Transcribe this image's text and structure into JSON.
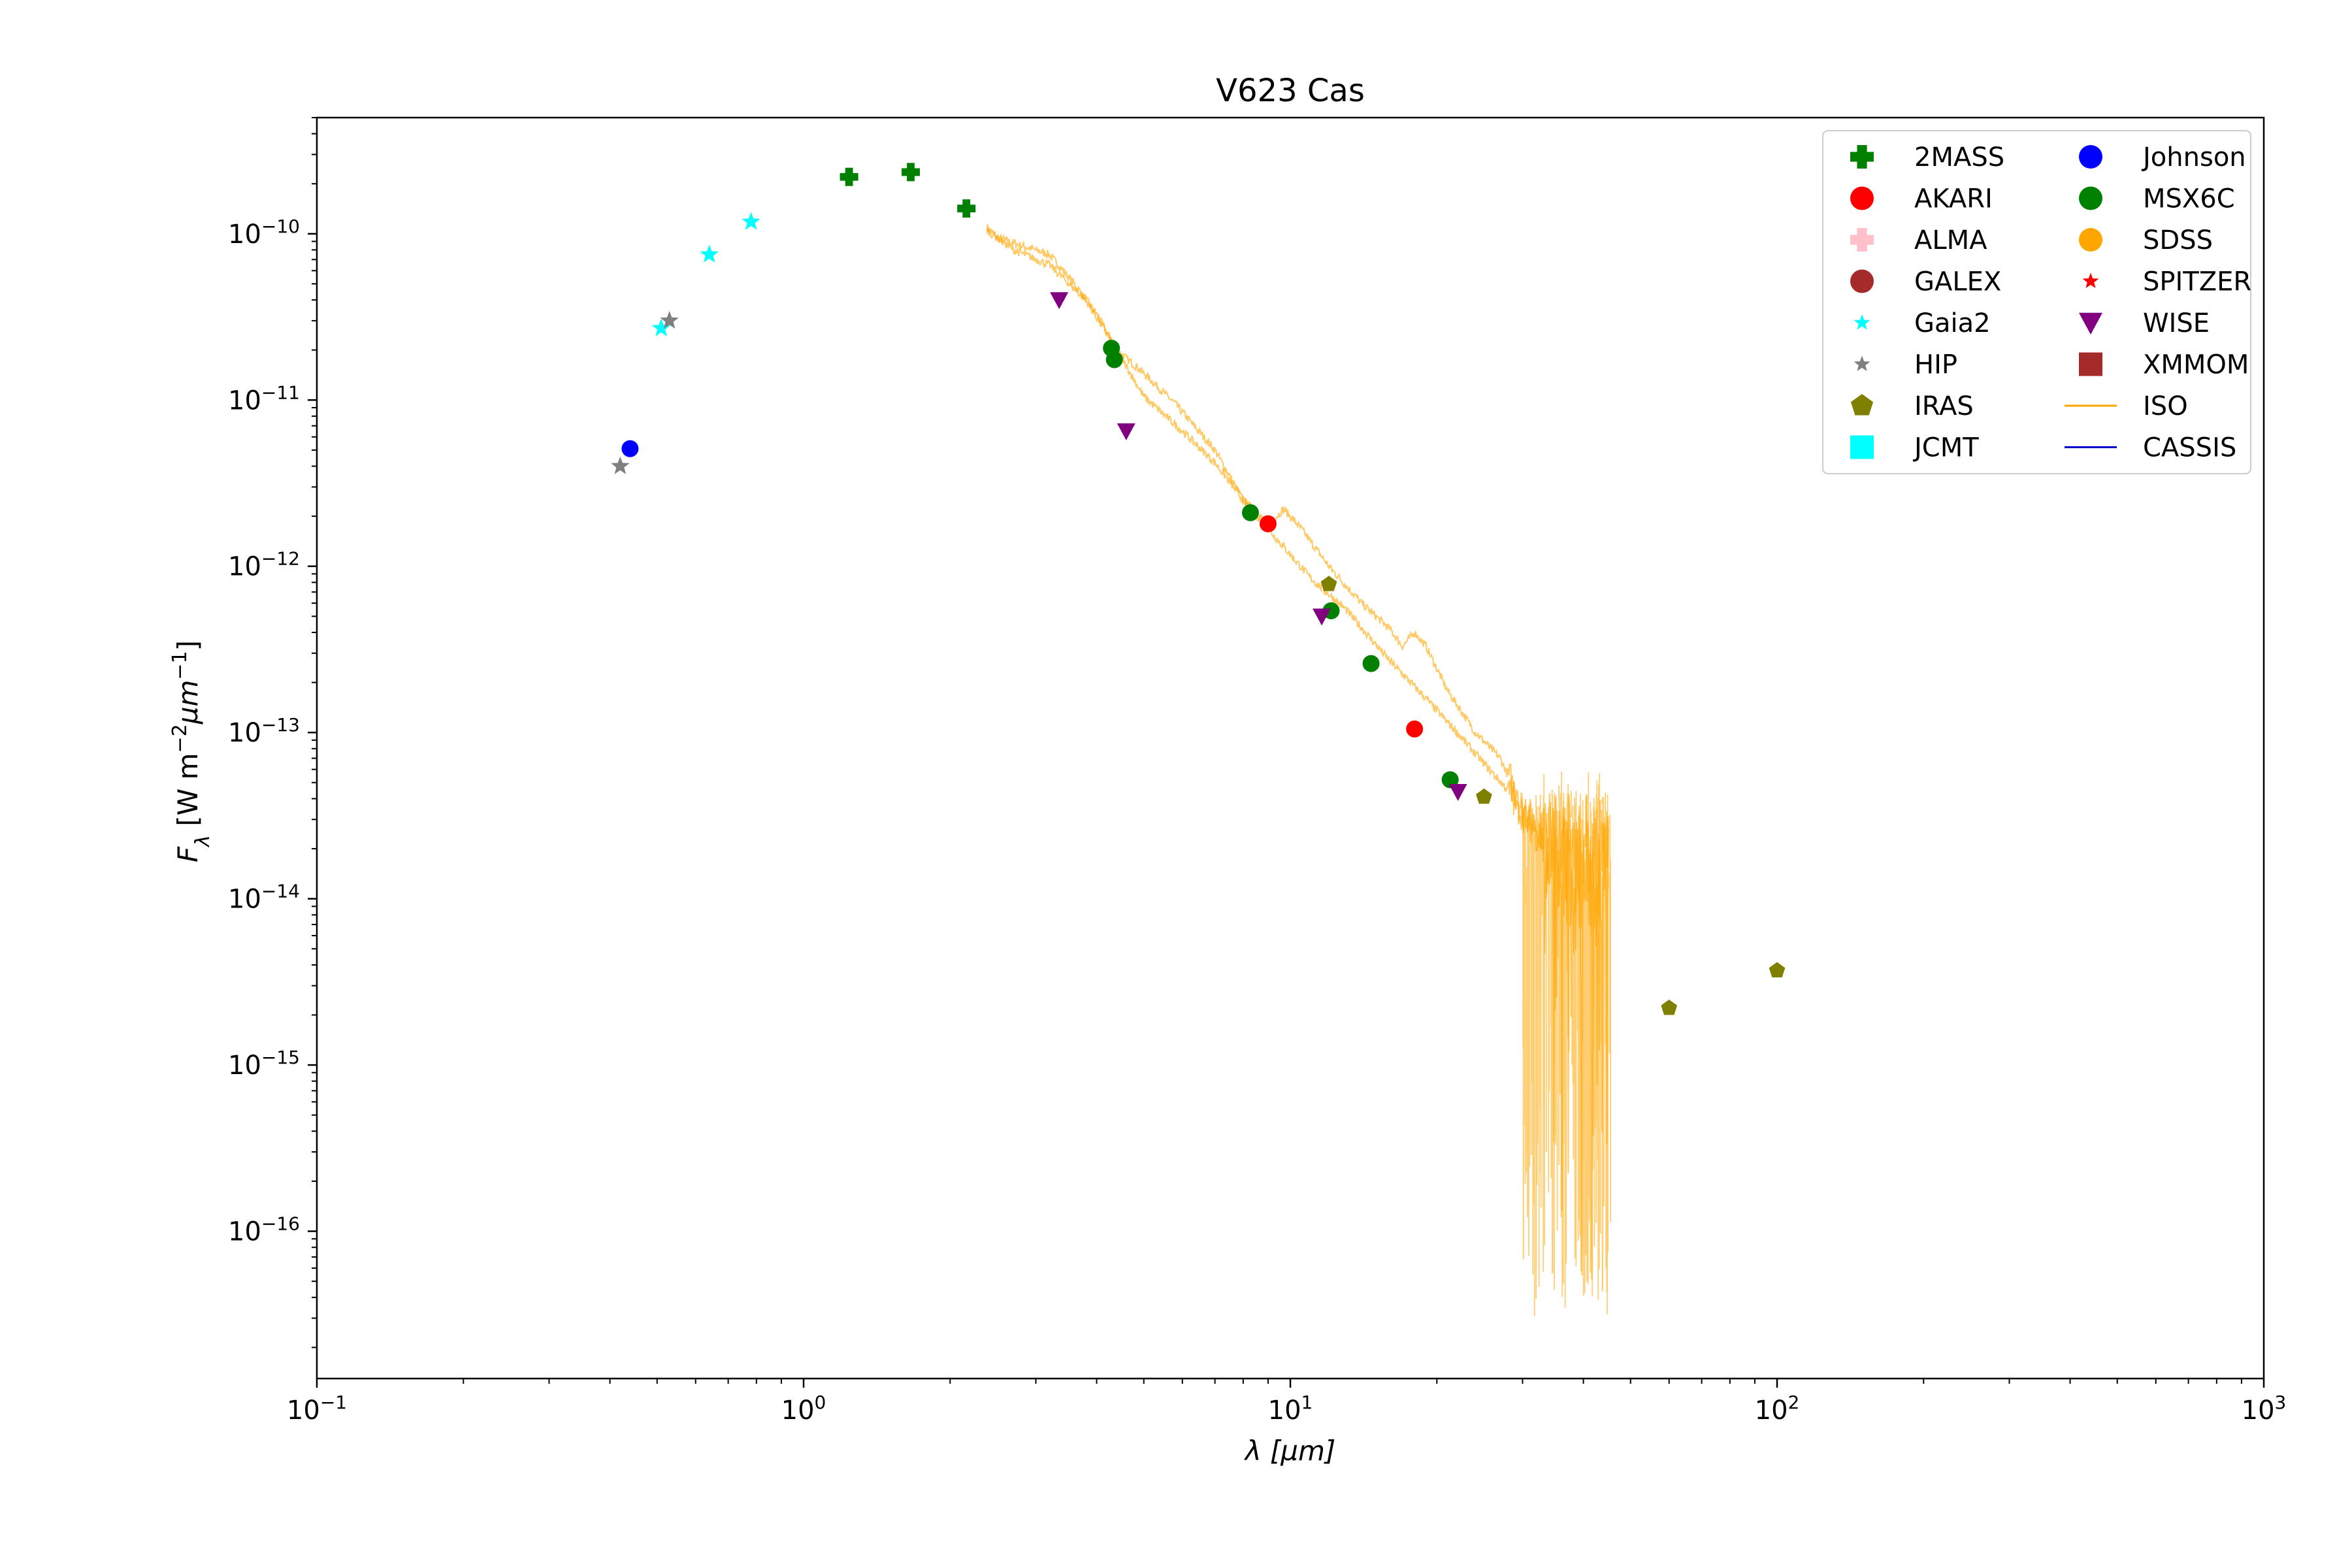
{
  "chart_data": {
    "type": "scatter",
    "title": "V623 Cas",
    "xlabel": "λ [μm]",
    "ylabel": "F_λ [W m^-2 μm^-1]",
    "xscale": "log",
    "yscale": "log",
    "xlim": [
      0.1,
      1000
    ],
    "ylim": [
      1.3e-17,
      5e-10
    ],
    "grid": false,
    "legend_position": "top-right",
    "legend_columns": 2,
    "x_tick_labels": [
      {
        "base": "10",
        "exp": "−1",
        "value": 0.1
      },
      {
        "base": "10",
        "exp": "0",
        "value": 1
      },
      {
        "base": "10",
        "exp": "1",
        "value": 10
      },
      {
        "base": "10",
        "exp": "2",
        "value": 100
      },
      {
        "base": "10",
        "exp": "3",
        "value": 1000
      }
    ],
    "y_tick_labels": [
      {
        "base": "10",
        "exp": "−10",
        "value": 1e-10
      },
      {
        "base": "10",
        "exp": "−11",
        "value": 1e-11
      },
      {
        "base": "10",
        "exp": "−12",
        "value": 1e-12
      },
      {
        "base": "10",
        "exp": "−13",
        "value": 1e-13
      },
      {
        "base": "10",
        "exp": "−14",
        "value": 1e-14
      },
      {
        "base": "10",
        "exp": "−15",
        "value": 1e-15
      },
      {
        "base": "10",
        "exp": "−16",
        "value": 1e-16
      }
    ],
    "series": [
      {
        "name": "2MASS",
        "marker": "plus",
        "color": "#008000",
        "points": [
          [
            1.24,
            2.2e-10
          ],
          [
            1.66,
            2.35e-10
          ],
          [
            2.16,
            1.42e-10
          ]
        ]
      },
      {
        "name": "AKARI",
        "marker": "circle",
        "color": "#ff0000",
        "points": [
          [
            9.0,
            1.8e-12
          ],
          [
            18.0,
            1.05e-13
          ]
        ]
      },
      {
        "name": "ALMA",
        "marker": "plus",
        "color": "#ffc0cb",
        "points": []
      },
      {
        "name": "GALEX",
        "marker": "circle",
        "color": "#a52a2a",
        "points": []
      },
      {
        "name": "Gaia2",
        "marker": "star",
        "color": "#00ffff",
        "points": [
          [
            0.51,
            2.7e-11
          ],
          [
            0.64,
            7.5e-11
          ],
          [
            0.78,
            1.18e-10
          ]
        ]
      },
      {
        "name": "HIP",
        "marker": "star",
        "color": "#808080",
        "points": [
          [
            0.42,
            4e-12
          ],
          [
            0.53,
            3e-11
          ]
        ]
      },
      {
        "name": "IRAS",
        "marker": "pentagon",
        "color": "#808000",
        "points": [
          [
            12.0,
            7.8e-13
          ],
          [
            25.0,
            4.1e-14
          ],
          [
            60.0,
            2.2e-15
          ],
          [
            100.0,
            3.7e-15
          ]
        ]
      },
      {
        "name": "JCMT",
        "marker": "square",
        "color": "#00ffff",
        "points": []
      },
      {
        "name": "Johnson",
        "marker": "circle",
        "color": "#0000ff",
        "points": [
          [
            0.44,
            5.1e-12
          ]
        ]
      },
      {
        "name": "MSX6C",
        "marker": "circle",
        "color": "#008000",
        "points": [
          [
            4.29,
            2.05e-11
          ],
          [
            4.35,
            1.75e-11
          ],
          [
            8.28,
            2.1e-12
          ],
          [
            12.13,
            5.4e-13
          ],
          [
            14.65,
            2.6e-13
          ],
          [
            21.3,
            5.2e-14
          ]
        ]
      },
      {
        "name": "SDSS",
        "marker": "circle",
        "color": "#ffa500",
        "points": []
      },
      {
        "name": "SPITZER",
        "marker": "star",
        "color": "#ff0000",
        "points": []
      },
      {
        "name": "WISE",
        "marker": "triangle-down",
        "color": "#800080",
        "points": [
          [
            3.35,
            4e-11
          ],
          [
            4.6,
            6.5e-12
          ],
          [
            11.6,
            5e-13
          ],
          [
            22.1,
            4.4e-14
          ]
        ]
      },
      {
        "name": "XMMOM",
        "marker": "square",
        "color": "#a52a2a",
        "points": []
      },
      {
        "name": "ISO",
        "marker": "line",
        "color": "#ffa500",
        "spectrum_upper": [
          [
            2.38,
            1.1e-10
          ],
          [
            2.5,
            9.5e-11
          ],
          [
            2.8,
            8.5e-11
          ],
          [
            3.2,
            7.5e-11
          ],
          [
            3.6,
            5e-11
          ],
          [
            4.0,
            3.3e-11
          ],
          [
            4.4,
            2e-11
          ],
          [
            5.0,
            1.45e-11
          ],
          [
            5.8,
            9.5e-12
          ],
          [
            7.0,
            5e-12
          ],
          [
            8.0,
            2.5e-12
          ],
          [
            9.0,
            1.8e-12
          ],
          [
            9.7,
            2.2e-12
          ],
          [
            10.5,
            1.7e-12
          ],
          [
            12.0,
            1e-12
          ],
          [
            14.0,
            6e-13
          ],
          [
            16.0,
            4.2e-13
          ],
          [
            17.0,
            3.3e-13
          ],
          [
            18.0,
            4e-13
          ],
          [
            19.0,
            3.3e-13
          ],
          [
            21.0,
            1.8e-13
          ],
          [
            24.0,
            1e-13
          ],
          [
            27.0,
            7e-14
          ],
          [
            30.0,
            3.5e-14
          ],
          [
            35.0,
            2e-14
          ],
          [
            40.0,
            2e-14
          ],
          [
            45.0,
            1.9e-14
          ]
        ],
        "spectrum_lower": [
          [
            2.38,
            1.05e-10
          ],
          [
            2.7,
            8e-11
          ],
          [
            3.2,
            6.5e-11
          ],
          [
            3.8,
            4e-11
          ],
          [
            4.4,
            2e-11
          ],
          [
            5.0,
            1.05e-11
          ],
          [
            6.0,
            6.5e-12
          ],
          [
            7.0,
            4.2e-12
          ],
          [
            8.0,
            2.5e-12
          ],
          [
            9.5,
            1.4e-12
          ],
          [
            11.0,
            8.5e-13
          ],
          [
            13.0,
            5.5e-13
          ],
          [
            16.0,
            2.7e-13
          ],
          [
            19.0,
            1.6e-13
          ],
          [
            22.0,
            1e-13
          ],
          [
            25.0,
            6.5e-14
          ],
          [
            28.0,
            4.5e-14
          ],
          [
            32.0,
            2.5e-14
          ],
          [
            37.0,
            1.5e-14
          ],
          [
            42.0,
            1.3e-14
          ],
          [
            45.0,
            1.5e-14
          ]
        ],
        "noise_region_min_flux": 3e-17
      },
      {
        "name": "CASSIS",
        "marker": "line",
        "color": "#0000cd",
        "points": []
      }
    ]
  }
}
